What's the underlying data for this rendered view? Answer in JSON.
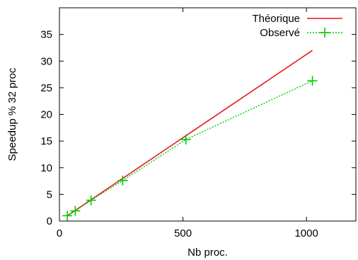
{
  "chart_data": {
    "type": "line",
    "xlabel": "Nb proc.",
    "ylabel": "Speedup % 32 proc",
    "xlim": [
      0,
      1200
    ],
    "ylim": [
      0,
      40
    ],
    "xticks": [
      0,
      500,
      1000
    ],
    "yticks": [
      0,
      5,
      10,
      15,
      20,
      25,
      30,
      35
    ],
    "grid": false,
    "legend_position": "top-right",
    "series": [
      {
        "name": "Théorique",
        "color": "#e31a1c",
        "style": "solid",
        "marker": "none",
        "x": [
          32,
          1024
        ],
        "y": [
          1,
          32
        ]
      },
      {
        "name": "Observé",
        "color": "#00cc00",
        "style": "dotted",
        "marker": "plus",
        "x": [
          32,
          64,
          128,
          256,
          512,
          1024
        ],
        "y": [
          1,
          1.9,
          3.9,
          7.6,
          15.3,
          26.3
        ]
      }
    ]
  }
}
